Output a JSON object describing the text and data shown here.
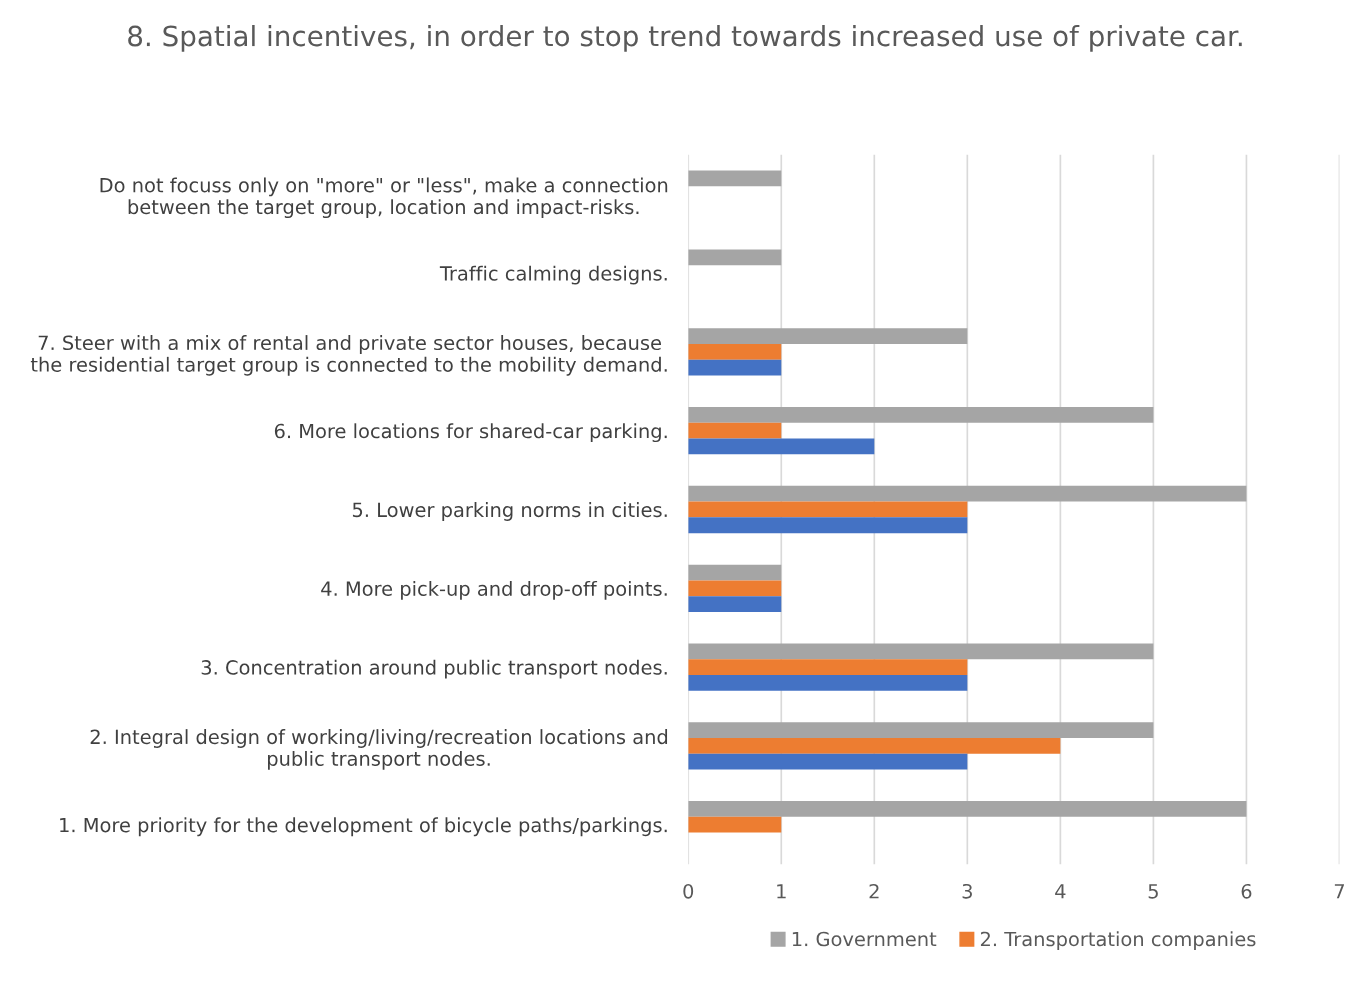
{
  "chart_data": {
    "type": "bar",
    "orientation": "horizontal",
    "title": "8. Spatial incentives, in order to stop trend towards increased use of private car.",
    "categories": [
      "Do not focuss only on \"more\" or \"less\", make a connection\nbetween the target group, location and impact-risks.",
      "Traffic calming designs.",
      "7. Steer with a mix of rental and private sector houses, because\nthe residential target group is connected to the mobility demand.",
      "6. More locations for shared-car parking.",
      "5. Lower parking norms in cities.",
      "4. More pick-up and drop-off points.",
      "3. Concentration around public transport nodes.",
      "2. Integral design of working/living/recreation locations and\npublic transport nodes.",
      "1. More priority for the development of bicycle paths/parkings."
    ],
    "series": [
      {
        "name": "1. Government",
        "color": "#a5a5a5",
        "values": [
          1,
          1,
          3,
          5,
          6,
          1,
          5,
          5,
          6
        ]
      },
      {
        "name": "2. Transportation companies",
        "color": "#ed7d31",
        "values": [
          0,
          0,
          1,
          1,
          3,
          1,
          3,
          4,
          1
        ]
      },
      {
        "color": "#4472c4",
        "values": [
          0,
          0,
          1,
          2,
          3,
          1,
          3,
          3,
          0
        ]
      }
    ],
    "xlim": [
      0,
      7
    ],
    "xticks": [
      0,
      1,
      2,
      3,
      4,
      5,
      6,
      7
    ],
    "grid": "x",
    "legend": "bottom"
  }
}
